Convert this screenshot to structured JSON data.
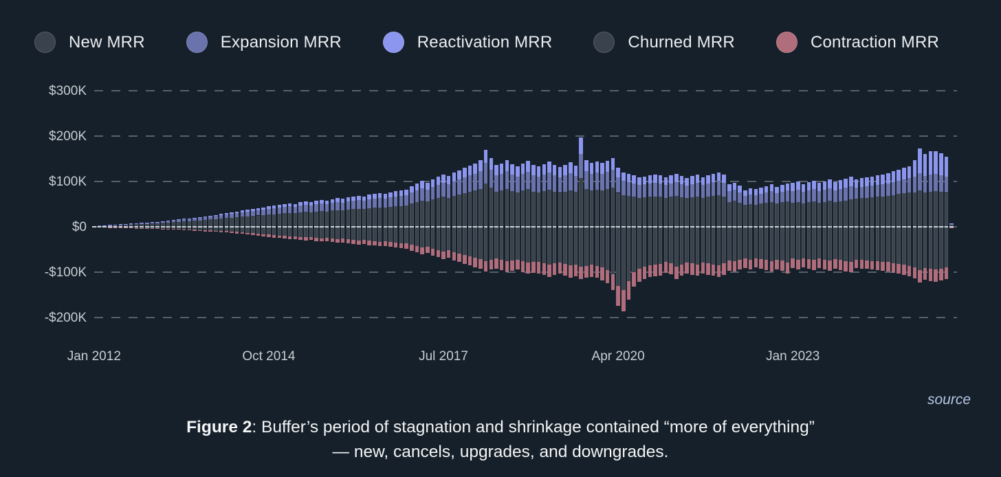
{
  "legend": [
    {
      "label": "New MRR",
      "color": "#3a434d"
    },
    {
      "label": "Expansion MRR",
      "color": "#6b73ac"
    },
    {
      "label": "Reactivation MRR",
      "color": "#8c96ee"
    },
    {
      "label": "Churned MRR",
      "color": "#3a434d"
    },
    {
      "label": "Contraction MRR",
      "color": "#b06d7c"
    }
  ],
  "source_label": "source",
  "caption": {
    "figure_label": "Figure 2",
    "rest": ": Buffer’s period of stagnation and shrinkage contained “more of everything” — new, cancels, upgrades, and downgrades."
  },
  "chart_data": {
    "type": "bar",
    "stacked": true,
    "unit": "USD thousands per month",
    "x_start": "2012-01",
    "x_end": "2025-07",
    "x_ticks": [
      {
        "index": 0,
        "label": "Jan 2012"
      },
      {
        "index": 33,
        "label": "Oct 2014"
      },
      {
        "index": 66,
        "label": "Jul 2017"
      },
      {
        "index": 99,
        "label": "Apr 2020"
      },
      {
        "index": 132,
        "label": "Jan 2023"
      }
    ],
    "y_ticks": [
      {
        "value": 300,
        "label": "$300K"
      },
      {
        "value": 200,
        "label": "$200K"
      },
      {
        "value": 100,
        "label": "$100K"
      },
      {
        "value": 0,
        "label": "$0"
      },
      {
        "value": -100,
        "label": "-$100K"
      },
      {
        "value": -200,
        "label": "-$200K"
      }
    ],
    "ylim": [
      -230,
      330
    ],
    "grid": "dashed-horizontal",
    "legend_position": "top-left",
    "series": [
      {
        "name": "New MRR",
        "color": "#3a434d",
        "values": [
          1.5,
          2,
          2.5,
          3,
          3.5,
          4,
          4.5,
          5,
          5.5,
          6,
          6.5,
          7,
          8,
          9,
          9.5,
          10,
          11,
          12,
          12.5,
          13,
          14,
          15,
          16,
          17,
          18,
          19,
          20,
          21,
          22,
          23,
          24,
          25,
          26,
          27,
          28,
          29,
          30,
          31,
          30,
          32,
          33,
          32,
          34,
          35,
          34,
          36,
          37,
          36,
          38,
          39,
          40,
          39,
          41,
          42,
          43,
          42,
          44,
          45,
          46,
          47,
          52,
          55,
          58,
          56,
          60,
          63,
          66,
          64,
          68,
          71,
          74,
          77,
          80,
          84,
          95,
          86,
          78,
          80,
          84,
          79,
          76,
          80,
          83,
          78,
          76,
          79,
          82,
          78,
          75,
          78,
          81,
          77,
          108,
          84,
          80,
          82,
          80,
          83,
          86,
          75,
          70,
          68,
          66,
          64,
          65,
          66,
          67,
          66,
          64,
          66,
          68,
          65,
          63,
          65,
          67,
          64,
          66,
          68,
          70,
          67,
          55,
          57,
          53,
          48,
          50,
          49,
          51,
          53,
          55,
          52,
          54,
          56,
          53,
          55,
          52,
          54,
          56,
          53,
          55,
          57,
          54,
          56,
          58,
          60,
          62,
          63,
          64,
          65,
          66,
          67,
          68,
          70,
          72,
          74,
          76,
          76,
          80,
          76,
          78,
          79,
          77,
          75,
          4
        ]
      },
      {
        "name": "Expansion MRR",
        "color": "#6b73ac",
        "values": [
          0.3,
          0.4,
          0.5,
          0.7,
          0.9,
          1.1,
          1.3,
          1.5,
          1.7,
          1.9,
          2.1,
          2.3,
          2.6,
          3,
          3.3,
          3.6,
          4,
          4.4,
          4.8,
          5.2,
          5.6,
          6,
          6.5,
          7,
          7.5,
          8,
          8.5,
          9,
          9.5,
          10,
          10.5,
          11,
          11.5,
          12,
          12.5,
          13,
          13.5,
          14,
          13.8,
          14.5,
          15,
          14.8,
          15.5,
          16,
          15.8,
          16.5,
          17,
          16.8,
          17.5,
          18,
          18.5,
          18.2,
          19,
          19.5,
          20,
          19.8,
          20.5,
          21,
          21.5,
          22,
          24,
          25.5,
          27,
          26,
          28,
          29.5,
          31,
          30,
          32,
          33.5,
          35,
          36,
          37,
          39,
          46,
          40,
          36,
          37,
          39,
          36,
          35,
          37,
          38,
          36,
          35,
          36.5,
          38,
          36,
          34.5,
          36,
          37.5,
          35.5,
          52,
          39,
          37,
          38,
          37,
          38.5,
          40,
          34,
          31,
          30,
          29,
          28,
          28.5,
          29,
          29.5,
          29,
          28,
          29,
          30,
          28.5,
          27.5,
          28.5,
          29.5,
          28,
          29,
          30,
          31,
          29.5,
          24,
          25,
          23,
          20.5,
          21.5,
          21,
          22,
          23,
          24,
          22.5,
          23.5,
          24.5,
          26,
          27,
          25.5,
          26.5,
          27.5,
          26,
          27,
          28,
          26.5,
          27.5,
          28.5,
          29.5,
          25,
          25.5,
          26,
          26.5,
          27,
          27.5,
          28,
          29,
          30,
          31,
          32,
          35,
          38,
          36,
          37,
          37.5,
          36.5,
          35,
          1.5
        ]
      },
      {
        "name": "Reactivation MRR",
        "color": "#8c96ee",
        "values": [
          0.1,
          0.1,
          0.2,
          0.2,
          0.3,
          0.3,
          0.4,
          0.4,
          0.5,
          0.5,
          0.6,
          0.6,
          0.7,
          0.8,
          0.9,
          1,
          1.1,
          1.2,
          1.3,
          1.4,
          1.5,
          1.6,
          1.8,
          2,
          3,
          3.3,
          3.6,
          3.9,
          4.2,
          4.5,
          4.8,
          5.1,
          5.4,
          5.7,
          6,
          6.3,
          6.6,
          7,
          6.8,
          7.3,
          7.7,
          7.5,
          8,
          8.4,
          8.2,
          8.7,
          9,
          8.8,
          9.5,
          10,
          10.4,
          10.2,
          10.8,
          11.2,
          11.6,
          11.4,
          12,
          12.4,
          12.8,
          13.2,
          14,
          15,
          16,
          15.5,
          16.8,
          17.8,
          18.8,
          18.2,
          19.5,
          20.5,
          21.5,
          22.3,
          23,
          24.5,
          29,
          25,
          22.5,
          23,
          24.5,
          22.8,
          22,
          23,
          24,
          22.5,
          22,
          23,
          24,
          22.5,
          21.7,
          22.5,
          23.5,
          22.3,
          37,
          24.6,
          23.2,
          23.9,
          23.2,
          24,
          25,
          21,
          19.1,
          18.5,
          17.9,
          17.3,
          17.6,
          17.9,
          18.2,
          17.9,
          17.6,
          18.2,
          18.8,
          17.9,
          17.3,
          17.9,
          18.5,
          17.6,
          18.2,
          18.8,
          19.2,
          18.5,
          15,
          15.6,
          14.4,
          12.5,
          13,
          13,
          13.5,
          14.1,
          14.7,
          13.8,
          14.4,
          15,
          17.3,
          18,
          17,
          17.7,
          18.4,
          17.4,
          18.1,
          19,
          18,
          18.9,
          19.7,
          20.6,
          18,
          18.5,
          19,
          19.5,
          20,
          21,
          22,
          23,
          24,
          25,
          26,
          36,
          54,
          48,
          52,
          50,
          49,
          45,
          2
        ]
      },
      {
        "name": "Churned MRR",
        "color": "#3a434d",
        "values": [
          -0.4,
          -0.5,
          -0.7,
          -0.9,
          -1.1,
          -1.4,
          -1.7,
          -2,
          -2.3,
          -2.6,
          -2.9,
          -3.2,
          -3.6,
          -4,
          -4.4,
          -4.8,
          -5.2,
          -5.6,
          -6,
          -6.5,
          -7,
          -7.5,
          -8,
          -8.5,
          -9,
          -9.5,
          -10,
          -11,
          -12,
          -13,
          -14,
          -15,
          -16,
          -17,
          -18,
          -19,
          -20,
          -21,
          -20.5,
          -22,
          -23,
          -22.5,
          -24,
          -25,
          -24.5,
          -26,
          -27,
          -26.5,
          -28,
          -29,
          -30,
          -29.5,
          -31,
          -32,
          -33,
          -32.5,
          -34,
          -35,
          -36,
          -37,
          -40,
          -43,
          -46,
          -44,
          -48,
          -51,
          -54,
          -52,
          -56,
          -59,
          -62,
          -65,
          -68,
          -71,
          -75,
          -72,
          -70,
          -73,
          -76,
          -74,
          -72,
          -76,
          -79,
          -77,
          -78,
          -81,
          -84,
          -81,
          -79,
          -82,
          -85,
          -83,
          -88,
          -86,
          -84,
          -86,
          -90,
          -95,
          -105,
          -130,
          -140,
          -120,
          -100,
          -92,
          -88,
          -85,
          -83,
          -82,
          -78,
          -80,
          -88,
          -83,
          -79,
          -81,
          -83,
          -79,
          -81,
          -83,
          -85,
          -81,
          -74,
          -76,
          -72,
          -70,
          -72,
          -69,
          -71,
          -73,
          -75,
          -72,
          -74,
          -79,
          -70,
          -72,
          -69,
          -71,
          -73,
          -70,
          -72,
          -74,
          -71,
          -73,
          -75,
          -77,
          -72,
          -73,
          -74,
          -75,
          -76,
          -77,
          -78,
          -80,
          -82,
          -84,
          -86,
          -90,
          -95,
          -91,
          -93,
          -94,
          -92,
          -90,
          -1.5
        ]
      },
      {
        "name": "Contraction MRR",
        "color": "#b06d7c",
        "values": [
          -0.1,
          -0.1,
          -0.2,
          -0.2,
          -0.3,
          -0.3,
          -0.4,
          -0.5,
          -0.6,
          -0.7,
          -0.8,
          -0.9,
          -1,
          -1.1,
          -1.2,
          -1.3,
          -1.5,
          -1.6,
          -1.8,
          -2,
          -2.2,
          -2.4,
          -2.6,
          -2.8,
          -3,
          -3.2,
          -3.4,
          -3.6,
          -3.8,
          -4,
          -4.3,
          -4.6,
          -4.9,
          -5.2,
          -5.5,
          -5.8,
          -6,
          -6.3,
          -6.1,
          -6.6,
          -6.9,
          -6.7,
          -7.2,
          -7.5,
          -7.3,
          -7.8,
          -8.1,
          -7.9,
          -8.4,
          -8.7,
          -9,
          -8.8,
          -9.3,
          -9.6,
          -10,
          -9.8,
          -10.3,
          -10.6,
          -11,
          -11.4,
          -12.5,
          -13.4,
          -14.3,
          -13.7,
          -15,
          -15.9,
          -16.9,
          -16.2,
          -17.5,
          -18.4,
          -19.4,
          -20.3,
          -21,
          -22,
          -23.5,
          -22.3,
          -21.8,
          -22.7,
          -23.7,
          -23,
          -22.4,
          -23.6,
          -24.6,
          -24,
          -24.3,
          -25.2,
          -26.2,
          -25.2,
          -24.6,
          -25.5,
          -26.5,
          -25.8,
          -27.4,
          -26.8,
          -26.1,
          -26.8,
          -28,
          -30,
          -34,
          -45,
          -46,
          -40,
          -32,
          -28.5,
          -27,
          -26,
          -25.5,
          -25,
          -23.5,
          -24.2,
          -27,
          -25,
          -23.8,
          -24.4,
          -25,
          -23.8,
          -24.4,
          -25,
          -25.6,
          -24.4,
          -22.6,
          -23.2,
          -22,
          -21.4,
          -22,
          -21.1,
          -21.7,
          -22.3,
          -22.9,
          -22,
          -22.6,
          -24.2,
          -21.4,
          -22,
          -21.1,
          -21.7,
          -22.3,
          -21.4,
          -22,
          -22.6,
          -21.7,
          -22.3,
          -22.9,
          -23.5,
          -18.5,
          -18.8,
          -19.1,
          -19.4,
          -19.7,
          -20,
          -20.3,
          -20.9,
          -21.5,
          -22.1,
          -22.7,
          -24,
          -27,
          -25,
          -26,
          -26.5,
          -25.5,
          -25,
          -0.5
        ]
      }
    ]
  }
}
